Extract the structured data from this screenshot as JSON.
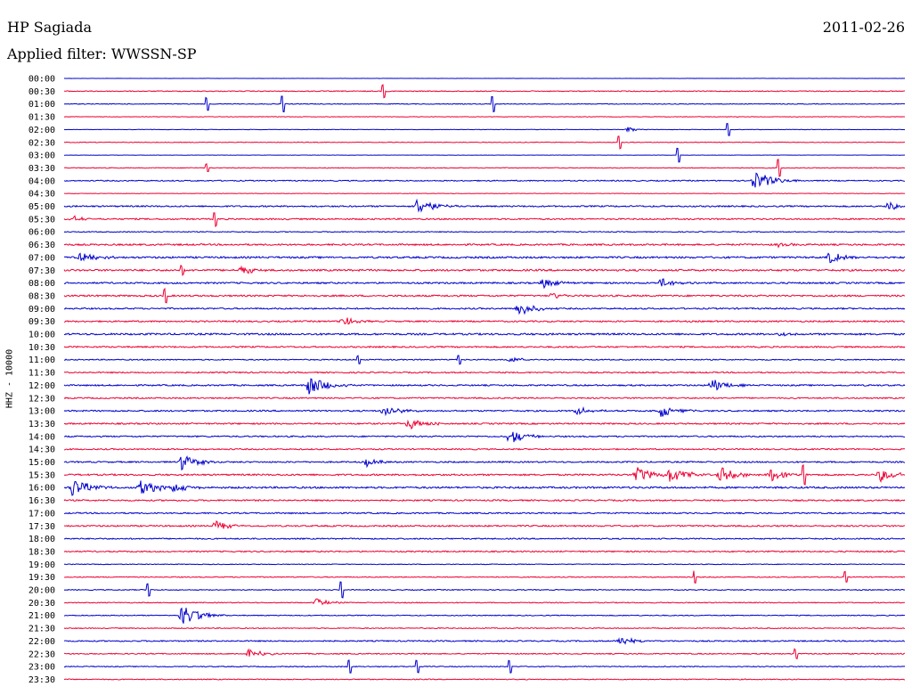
{
  "header": {
    "station": "HP Sagiada",
    "date": "2011-02-26",
    "filter": "Applied filter: WWSSN-SP"
  },
  "chart_data": {
    "type": "line",
    "title": "HP Sagiada",
    "ylabel": "HHZ - 10000",
    "row_times": [
      "00:00",
      "00:30",
      "01:00",
      "01:30",
      "02:00",
      "02:30",
      "03:00",
      "03:30",
      "04:00",
      "04:30",
      "05:00",
      "05:30",
      "06:00",
      "06:30",
      "07:00",
      "07:30",
      "08:00",
      "08:30",
      "09:00",
      "09:30",
      "10:00",
      "10:30",
      "11:00",
      "11:30",
      "12:00",
      "12:30",
      "13:00",
      "13:30",
      "14:00",
      "14:30",
      "15:00",
      "15:30",
      "16:00",
      "16:30",
      "17:00",
      "17:30",
      "18:00",
      "18:30",
      "19:00",
      "19:30",
      "20:00",
      "20:30",
      "21:00",
      "21:30",
      "22:00",
      "22:30",
      "23:00",
      "23:30"
    ],
    "colors": [
      "#0000cc",
      "#ee0033"
    ],
    "noise": [
      0.2,
      1.0,
      0.8,
      0.6,
      0.5,
      0.7,
      0.3,
      0.8,
      1.2,
      0.5,
      1.6,
      1.6,
      1.0,
      1.8,
      2.0,
      2.0,
      1.8,
      1.8,
      1.6,
      1.6,
      2.0,
      1.6,
      1.2,
      1.4,
      1.6,
      1.4,
      1.6,
      1.6,
      1.5,
      1.4,
      1.6,
      1.8,
      2.0,
      1.6,
      1.5,
      1.6,
      1.4,
      1.4,
      0.8,
      1.0,
      1.0,
      1.0,
      1.0,
      1.0,
      1.4,
      1.2,
      1.0,
      1.0
    ],
    "events": {
      "1": [
        [
          0.38,
          8,
          "spike"
        ]
      ],
      "2": [
        [
          0.17,
          8,
          "spike"
        ],
        [
          0.26,
          10,
          "spike"
        ],
        [
          0.51,
          10,
          "spike"
        ]
      ],
      "4": [
        [
          0.67,
          3,
          "burst"
        ],
        [
          0.79,
          8,
          "spike"
        ]
      ],
      "5": [
        [
          0.66,
          8,
          "spike"
        ]
      ],
      "6": [
        [
          0.73,
          9,
          "spike"
        ]
      ],
      "7": [
        [
          0.17,
          5,
          "spike"
        ],
        [
          0.85,
          11,
          "spike"
        ]
      ],
      "8": [
        [
          0.82,
          12,
          "burst"
        ]
      ],
      "10": [
        [
          0.42,
          10,
          "burst"
        ],
        [
          0.98,
          5,
          "burst"
        ]
      ],
      "11": [
        [
          0.01,
          4,
          "burst"
        ],
        [
          0.18,
          9,
          "spike"
        ]
      ],
      "13": [
        [
          0.85,
          3,
          "burst"
        ]
      ],
      "14": [
        [
          0.02,
          7,
          "burst"
        ],
        [
          0.91,
          7,
          "burst"
        ]
      ],
      "15": [
        [
          0.21,
          6,
          "burst"
        ],
        [
          0.14,
          6,
          "spike"
        ]
      ],
      "16": [
        [
          0.57,
          7,
          "burst"
        ],
        [
          0.71,
          6,
          "burst"
        ]
      ],
      "17": [
        [
          0.12,
          9,
          "spike"
        ],
        [
          0.58,
          4,
          "burst"
        ]
      ],
      "18": [
        [
          0.54,
          9,
          "burst"
        ]
      ],
      "19": [
        [
          0.33,
          6,
          "burst"
        ]
      ],
      "20": [
        [
          0.85,
          3,
          "burst"
        ]
      ],
      "22": [
        [
          0.35,
          5,
          "spike"
        ],
        [
          0.47,
          6,
          "spike"
        ],
        [
          0.53,
          4,
          "burst"
        ]
      ],
      "24": [
        [
          0.29,
          12,
          "burst"
        ],
        [
          0.77,
          8,
          "burst"
        ]
      ],
      "26": [
        [
          0.38,
          7,
          "burst"
        ],
        [
          0.61,
          5,
          "burst"
        ],
        [
          0.71,
          8,
          "burst"
        ]
      ],
      "27": [
        [
          0.41,
          8,
          "burst"
        ]
      ],
      "28": [
        [
          0.53,
          9,
          "burst"
        ]
      ],
      "30": [
        [
          0.14,
          9,
          "burst"
        ],
        [
          0.36,
          5,
          "burst"
        ]
      ],
      "31": [
        [
          0.68,
          10,
          "burst"
        ],
        [
          0.72,
          10,
          "burst"
        ],
        [
          0.78,
          9,
          "burst"
        ],
        [
          0.84,
          8,
          "burst"
        ],
        [
          0.88,
          13,
          "spike"
        ],
        [
          0.97,
          8,
          "burst"
        ]
      ],
      "32": [
        [
          0.01,
          11,
          "burst"
        ],
        [
          0.09,
          10,
          "burst"
        ],
        [
          0.13,
          6,
          "burst"
        ]
      ],
      "35": [
        [
          0.18,
          6,
          "burst"
        ]
      ],
      "39": [
        [
          0.75,
          8,
          "spike"
        ],
        [
          0.93,
          7,
          "spike"
        ]
      ],
      "40": [
        [
          0.1,
          8,
          "spike"
        ],
        [
          0.33,
          10,
          "spike"
        ]
      ],
      "41": [
        [
          0.3,
          5,
          "burst"
        ]
      ],
      "42": [
        [
          0.14,
          12,
          "burst"
        ]
      ],
      "44": [
        [
          0.66,
          6,
          "burst"
        ]
      ],
      "45": [
        [
          0.22,
          6,
          "burst"
        ],
        [
          0.87,
          6,
          "spike"
        ]
      ],
      "46": [
        [
          0.34,
          8,
          "spike"
        ],
        [
          0.42,
          8,
          "spike"
        ],
        [
          0.53,
          8,
          "spike"
        ]
      ]
    }
  }
}
